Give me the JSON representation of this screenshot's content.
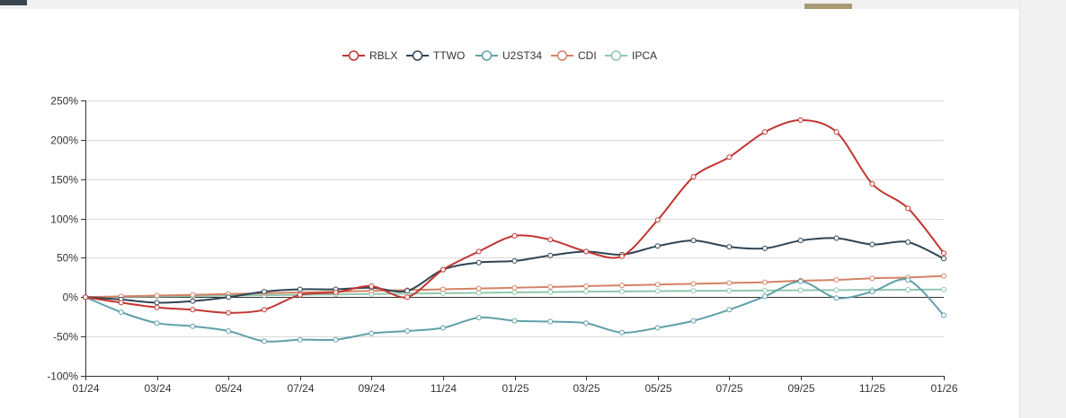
{
  "chart_data": {
    "type": "line",
    "title": "",
    "xlabel": "",
    "ylabel": "",
    "ylim": [
      -100,
      250
    ],
    "yticks": [
      -100,
      -50,
      0,
      50,
      100,
      150,
      200,
      250
    ],
    "ytick_labels": [
      "-100%",
      "-50%",
      "0%",
      "50%",
      "100%",
      "150%",
      "200%",
      "250%"
    ],
    "x_tick_labels": [
      "01/24",
      "03/24",
      "05/24",
      "07/24",
      "09/24",
      "11/24",
      "01/25",
      "03/25",
      "05/25",
      "07/25",
      "09/25",
      "11/25",
      "01/26"
    ],
    "legend_position": "top-center",
    "grid": true,
    "series": [
      {
        "name": "RBLX",
        "color": "#c23531",
        "values": [
          0,
          -7,
          -13,
          -16,
          -20,
          -16,
          3,
          6,
          14,
          0,
          35,
          58,
          78,
          73,
          58,
          52,
          98,
          153,
          178,
          210,
          225,
          210,
          144,
          113,
          56
        ]
      },
      {
        "name": "TTWO",
        "color": "#2f4554",
        "values": [
          0,
          -3,
          -7,
          -5,
          0,
          7,
          10,
          10,
          12,
          8,
          35,
          44,
          46,
          53,
          58,
          54,
          65,
          72,
          64,
          62,
          72,
          75,
          67,
          70,
          49
        ]
      },
      {
        "name": "U2ST34",
        "color": "#61a0a8",
        "values": [
          0,
          -19,
          -33,
          -37,
          -43,
          -56,
          -54,
          -54,
          -46,
          -43,
          -39,
          -26,
          -30,
          -31,
          -33,
          -45,
          -39,
          -30,
          -16,
          1,
          20,
          -1,
          7,
          22,
          -23
        ]
      },
      {
        "name": "CDI",
        "color": "#d48265",
        "values": [
          0,
          1,
          2,
          3,
          4,
          5,
          6,
          7,
          8,
          9,
          10,
          11,
          12,
          13,
          14,
          15,
          16,
          17,
          18,
          19,
          21,
          22,
          24,
          25,
          27
        ]
      },
      {
        "name": "IPCA",
        "color": "#91c7ae",
        "values": [
          0,
          0.5,
          1,
          1.5,
          2,
          2.5,
          3,
          3.5,
          4,
          4.5,
          5,
          5.5,
          6,
          6.5,
          7,
          7.3,
          7.6,
          8,
          8.2,
          8.5,
          8.8,
          9,
          9.2,
          9.5,
          9.8
        ]
      }
    ]
  }
}
